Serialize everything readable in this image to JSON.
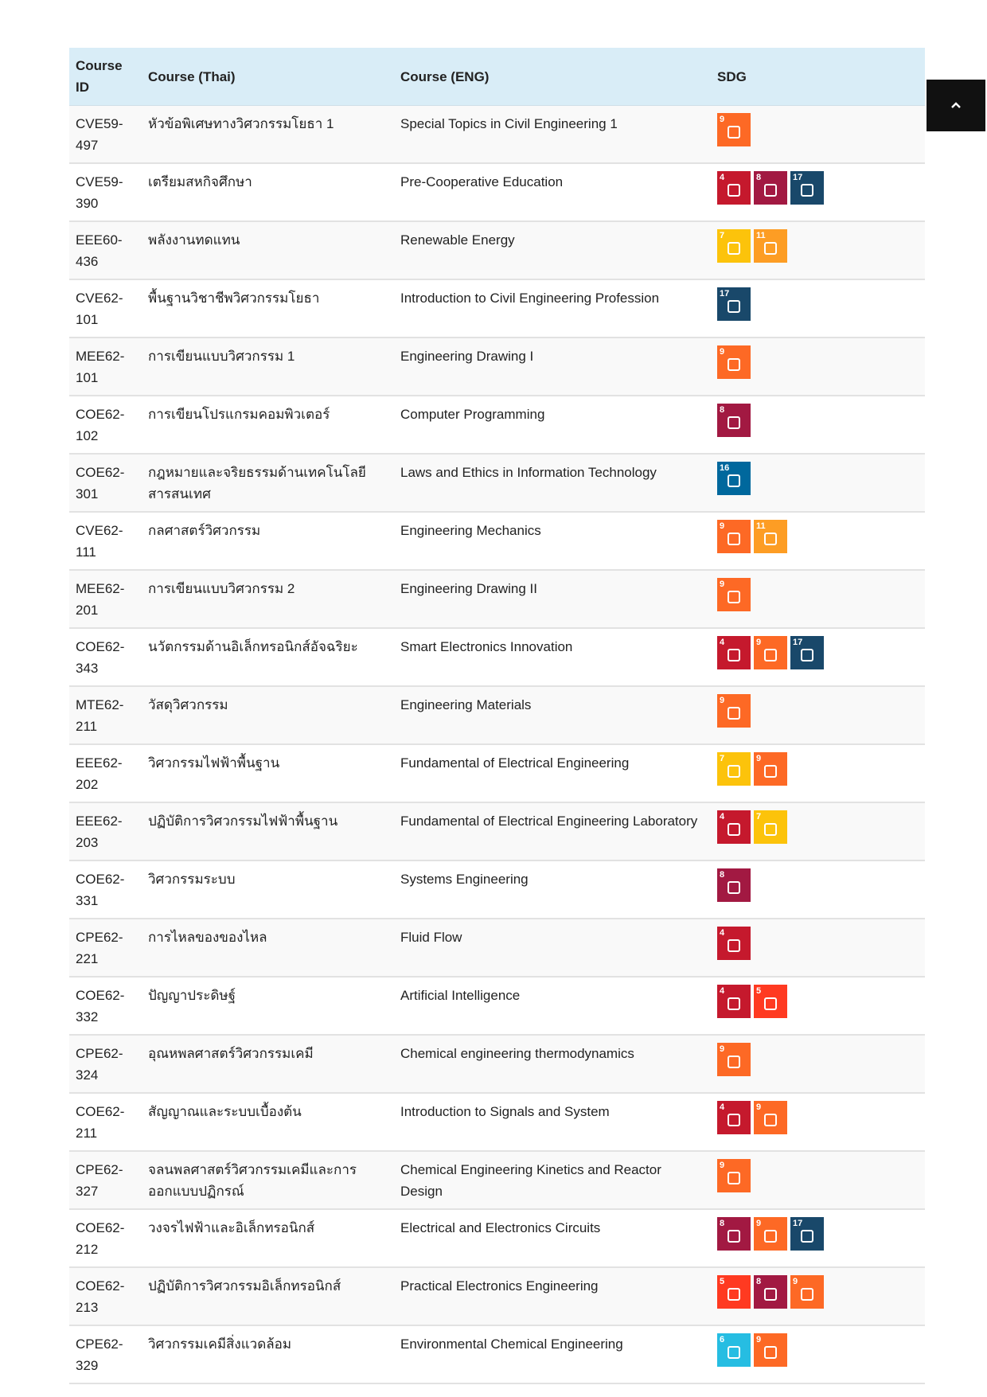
{
  "table": {
    "headers": [
      "Course ID",
      "Course (Thai)",
      "Course (ENG)",
      "SDG"
    ],
    "rows": [
      {
        "id": "CVE59-497",
        "thai": "หัวข้อพิเศษทางวิศวกรรมโยธา 1",
        "eng": "Special Topics in Civil Engineering 1",
        "sdg": [
          9
        ]
      },
      {
        "id": "CVE59-390",
        "thai": "เตรียมสหกิจศึกษา",
        "eng": "Pre-Cooperative Education",
        "sdg": [
          4,
          8,
          17
        ]
      },
      {
        "id": "EEE60-436",
        "thai": "พลังงานทดแทน",
        "eng": "Renewable Energy",
        "sdg": [
          7,
          11
        ]
      },
      {
        "id": "CVE62-101",
        "thai": "พื้นฐานวิชาชีพวิศวกรรมโยธา",
        "eng": "Introduction to Civil Engineering Profession",
        "sdg": [
          17
        ]
      },
      {
        "id": "MEE62-101",
        "thai": "การเขียนแบบวิศวกรรม 1",
        "eng": "Engineering Drawing I",
        "sdg": [
          9
        ]
      },
      {
        "id": "COE62-102",
        "thai": "การเขียนโปรแกรมคอมพิวเตอร์",
        "eng": "Computer Programming",
        "sdg": [
          8
        ]
      },
      {
        "id": "COE62-301",
        "thai": "กฎหมายและจริยธรรมด้านเทคโนโลยีสารสนเทศ",
        "eng": "Laws and Ethics in Information Technology",
        "sdg": [
          16
        ]
      },
      {
        "id": "CVE62-111",
        "thai": "กลศาสตร์วิศวกรรม",
        "eng": "Engineering Mechanics",
        "sdg": [
          9,
          11
        ]
      },
      {
        "id": "MEE62-201",
        "thai": "การเขียนแบบวิศวกรรม 2",
        "eng": "Engineering Drawing II",
        "sdg": [
          9
        ]
      },
      {
        "id": "COE62-343",
        "thai": "นวัตกรรมด้านอิเล็กทรอนิกส์อัจฉริยะ",
        "eng": "Smart Electronics Innovation",
        "sdg": [
          4,
          9,
          17
        ]
      },
      {
        "id": "MTE62-211",
        "thai": "วัสดุวิศวกรรม",
        "eng": "Engineering Materials",
        "sdg": [
          9
        ]
      },
      {
        "id": "EEE62-202",
        "thai": "วิศวกรรมไฟฟ้าพื้นฐาน",
        "eng": "Fundamental of Electrical Engineering",
        "sdg": [
          7,
          9
        ]
      },
      {
        "id": "EEE62-203",
        "thai": "ปฏิบัติการวิศวกรรมไฟฟ้าพื้นฐาน",
        "eng": "Fundamental of Electrical Engineering Laboratory",
        "sdg": [
          4,
          7
        ]
      },
      {
        "id": "COE62-331",
        "thai": "วิศวกรรมระบบ",
        "eng": "Systems Engineering",
        "sdg": [
          8
        ]
      },
      {
        "id": "CPE62-221",
        "thai": "การไหลของของไหล",
        "eng": "Fluid Flow",
        "sdg": [
          4
        ]
      },
      {
        "id": "COE62-332",
        "thai": "ปัญญาประดิษฐ์",
        "eng": "Artificial Intelligence",
        "sdg": [
          4,
          5
        ]
      },
      {
        "id": "CPE62-324",
        "thai": "อุณหพลศาสตร์วิศวกรรมเคมี",
        "eng": "Chemical engineering thermodynamics",
        "sdg": [
          9
        ]
      },
      {
        "id": "COE62-211",
        "thai": "สัญญาณและระบบเบื้องต้น",
        "eng": "Introduction to Signals and System",
        "sdg": [
          4,
          9
        ]
      },
      {
        "id": "CPE62-327",
        "thai": "จลนพลศาสตร์วิศวกรรมเคมีและการออกแบบปฏิกรณ์",
        "eng": "Chemical Engineering Kinetics and Reactor Design",
        "sdg": [
          9
        ]
      },
      {
        "id": "COE62-212",
        "thai": "วงจรไฟฟ้าและอิเล็กทรอนิกส์",
        "eng": "Electrical and Electronics Circuits",
        "sdg": [
          8,
          9,
          17
        ]
      },
      {
        "id": "COE62-213",
        "thai": "ปฏิบัติการวิศวกรรมอิเล็กทรอนิกส์",
        "eng": "Practical Electronics Engineering",
        "sdg": [
          5,
          8,
          9
        ]
      },
      {
        "id": "CPE62-329",
        "thai": "วิศวกรรมเคมีสิ่งแวดล้อม",
        "eng": "Environmental Chemical Engineering",
        "sdg": [
          6,
          9
        ]
      }
    ]
  }
}
